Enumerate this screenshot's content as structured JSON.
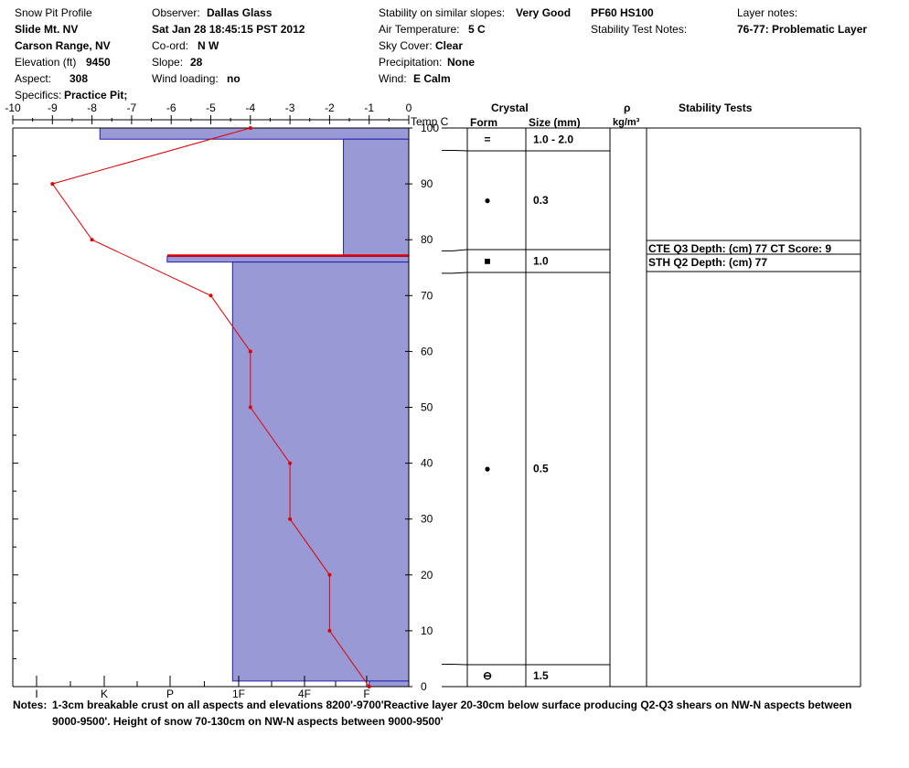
{
  "header": {
    "title": "Snow Pit Profile",
    "location": "Slide Mt. NV",
    "range": "Carson Range, NV",
    "elevation_label": "Elevation (ft)",
    "elevation": "9450",
    "aspect_label": "Aspect:",
    "aspect": "308",
    "specifics_label": "Specifics:",
    "specifics": "Practice Pit;",
    "observer_label": "Observer:",
    "observer": "Dallas Glass",
    "datetime": "Sat Jan 28 18:45:15 PST 2012",
    "coord_label": "Co-ord:",
    "coord": "N  W",
    "slope_label": "Slope:",
    "slope": "28",
    "wind_loading_label": "Wind loading:",
    "wind_loading": "no",
    "stability_label": "Stability on similar slopes:",
    "stability": "Very Good",
    "air_temp_label": "Air Temperature:",
    "air_temp": "5 C",
    "sky_label": "Sky Cover:",
    "sky": "Clear",
    "precip_label": "Precipitation:",
    "precip": "None",
    "wind_label": "Wind:",
    "wind": "E Calm",
    "pf_hs": "PF60 HS100",
    "stability_notes_label": "Stability Test Notes:",
    "layer_notes_label": "Layer notes:",
    "layer_note": "76-77: Problematic Layer"
  },
  "columns": {
    "crystal": "Crystal",
    "form": "Form",
    "size": "Size (mm)",
    "rho": "ρ",
    "density_unit": "kg/m³",
    "stability_tests": "Stability Tests",
    "temp_unit": "Temp C"
  },
  "notes": {
    "label": "Notes:",
    "line1": "1-3cm breakable crust on all aspects and elevations 8200'-9700'Reactive layer 20-30cm below surface producing Q2-Q3 shears on NW-N aspects between",
    "line2": "9000-9500'. Height of snow 70-130cm on NW-N aspects between 9000-9500'"
  },
  "chart_data": {
    "type": "line",
    "colors": {
      "temperature": "#e00000",
      "hardness_fill": "#9999d6",
      "hardness_stroke": "#2020b0"
    },
    "temp_axis": {
      "ticks": [
        "-10",
        "-9",
        "-8",
        "-7",
        "-6",
        "-5",
        "-4",
        "-3",
        "-2",
        "-1",
        "0"
      ],
      "range": [
        -10,
        0
      ]
    },
    "depth_axis": {
      "ticks": [
        "100",
        "90",
        "80",
        "70",
        "60",
        "50",
        "40",
        "30",
        "20",
        "10",
        "0"
      ],
      "range": [
        0,
        100
      ]
    },
    "hardness_axis": {
      "ticks": [
        "I",
        "K",
        "P",
        "1F",
        "4F",
        "F"
      ]
    },
    "temperature_profile": [
      {
        "depth": 100,
        "temp": -4.0
      },
      {
        "depth": 90,
        "temp": -9.0
      },
      {
        "depth": 80,
        "temp": -8.0
      },
      {
        "depth": 70,
        "temp": -5.0
      },
      {
        "depth": 60,
        "temp": -4.0
      },
      {
        "depth": 50,
        "temp": -4.0
      },
      {
        "depth": 40,
        "temp": -3.0
      },
      {
        "depth": 30,
        "temp": -3.0
      },
      {
        "depth": 20,
        "temp": -2.0
      },
      {
        "depth": 10,
        "temp": -2.0
      },
      {
        "depth": 0,
        "temp": -1.0
      }
    ],
    "hardness_layers": [
      {
        "top": 100,
        "bottom": 98,
        "hardness": -7.8
      },
      {
        "top": 98,
        "bottom": 77,
        "hardness": -1.65
      },
      {
        "top": 77,
        "bottom": 76,
        "hardness": -6.1
      },
      {
        "top": 76,
        "bottom": 1,
        "hardness": -4.45
      },
      {
        "top": 1,
        "bottom": 0,
        "hardness": -1.0
      }
    ],
    "problem_layer_depth": 77,
    "layers": [
      {
        "top": 100,
        "bottom": 96,
        "form": "=",
        "size": "1.0 - 2.0"
      },
      {
        "top": 96,
        "bottom": 78,
        "form": "●",
        "size": "0.3"
      },
      {
        "top": 78,
        "bottom": 74,
        "form": "■",
        "size": "1.0"
      },
      {
        "top": 74,
        "bottom": 4,
        "form": "●",
        "size": "0.5"
      },
      {
        "top": 4,
        "bottom": 0,
        "form": "⊖",
        "size": "1.5"
      }
    ],
    "stability_tests": [
      {
        "depth": 77,
        "text": "CTE Q3 Depth: (cm) 77 CT Score: 9"
      },
      {
        "depth": 77,
        "text": "STH Q2 Depth: (cm) 77"
      }
    ]
  }
}
